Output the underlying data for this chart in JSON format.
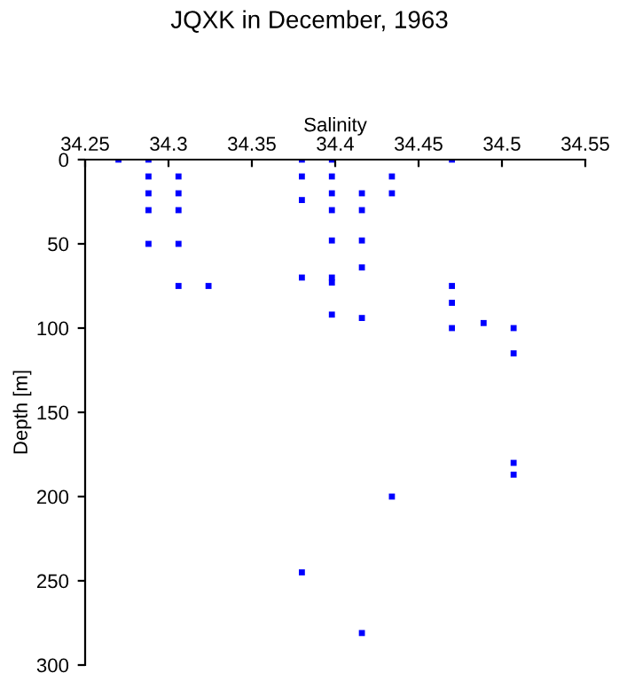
{
  "chart_data": {
    "type": "scatter",
    "title": "JQXK in December, 1963",
    "xlabel": "Salinity",
    "ylabel": "Depth [m]",
    "x": [
      34.27,
      34.288,
      34.38,
      34.398,
      34.47,
      34.288,
      34.288,
      34.288,
      34.288,
      34.306,
      34.306,
      34.306,
      34.306,
      34.306,
      34.324,
      34.38,
      34.38,
      34.38,
      34.398,
      34.398,
      34.398,
      34.398,
      34.398,
      34.398,
      34.398,
      34.416,
      34.416,
      34.416,
      34.416,
      34.416,
      34.434,
      34.434,
      34.47,
      34.47,
      34.47,
      34.489,
      34.507,
      34.507,
      34.507,
      34.507,
      34.434,
      34.38,
      34.416
    ],
    "values": [
      0,
      0,
      0,
      0,
      0,
      10,
      20,
      30,
      50,
      10,
      20,
      30,
      50,
      75,
      75,
      10,
      24,
      70,
      10,
      20,
      30,
      48,
      70,
      73,
      92,
      20,
      30,
      48,
      64,
      94,
      10,
      20,
      75,
      85,
      100,
      97,
      100,
      115,
      180,
      187,
      200,
      245,
      281
    ],
    "color": "#0000ff",
    "marker": "square",
    "xlim": [
      34.25,
      34.55
    ],
    "xticks": [
      34.25,
      34.3,
      34.35,
      34.4,
      34.45,
      34.5,
      34.55
    ],
    "ylim": [
      300,
      0
    ],
    "yticks": [
      0,
      50,
      100,
      150,
      200,
      250,
      300
    ],
    "grid": false
  }
}
